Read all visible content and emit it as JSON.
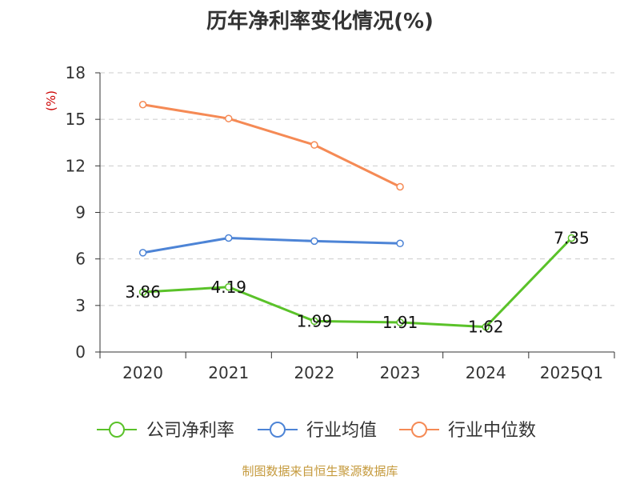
{
  "chart_data": {
    "type": "line",
    "title": "历年净利率变化情况(%)",
    "ylabel": "(%)",
    "categories": [
      "2020",
      "2021",
      "2022",
      "2023",
      "2024",
      "2025Q1"
    ],
    "ylim": [
      0,
      18
    ],
    "yticks": [
      0,
      3,
      6,
      9,
      12,
      15,
      18
    ],
    "grid": true,
    "legend_position": "bottom",
    "series": [
      {
        "name": "公司净利率",
        "color": "#5ac229",
        "values": [
          3.86,
          4.19,
          1.99,
          1.91,
          1.62,
          7.35
        ],
        "labels": [
          "3.86",
          "4.19",
          "1.99",
          "1.91",
          "1.62",
          "7.35"
        ]
      },
      {
        "name": "行业均值",
        "color": "#4d84d6",
        "values": [
          6.4,
          7.35,
          7.15,
          7.0,
          null,
          null
        ]
      },
      {
        "name": "行业中位数",
        "color": "#f58a55",
        "values": [
          15.95,
          15.05,
          13.35,
          10.65,
          null,
          null
        ]
      }
    ]
  },
  "source_note": "制图数据来自恒生聚源数据库"
}
